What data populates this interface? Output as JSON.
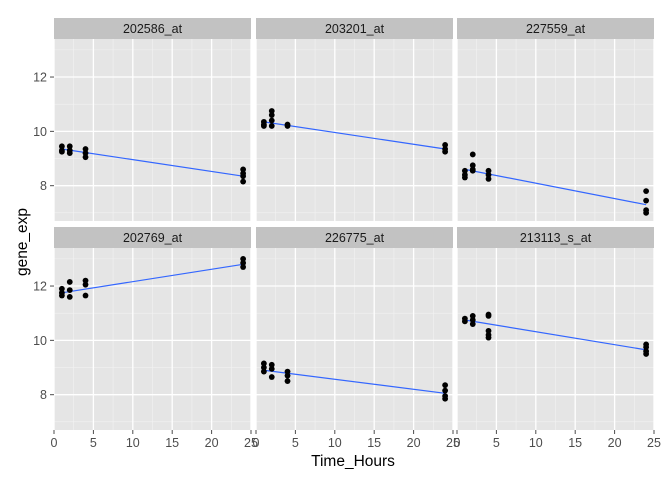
{
  "chart_data": {
    "type": "scatter",
    "xlabel": "Time_Hours",
    "ylabel": "gene_exp",
    "xlim": [
      0,
      25
    ],
    "ylim": [
      6.7,
      13.4
    ],
    "x_ticks": [
      "0",
      "5",
      "10",
      "15",
      "20",
      "25"
    ],
    "y_ticks": [
      "8",
      "10",
      "12"
    ],
    "grid": true,
    "facet_strip_color": "#c2c2c2",
    "panel_background": "#e5e5e5",
    "point_color": "#000000",
    "line_color": "#3366ff",
    "panels": [
      {
        "title": "202586_at",
        "fit": {
          "x": [
            1,
            24
          ],
          "y": [
            9.35,
            8.35
          ]
        },
        "points": [
          {
            "x": 1,
            "y": 9.45
          },
          {
            "x": 1,
            "y": 9.3
          },
          {
            "x": 1,
            "y": 9.25
          },
          {
            "x": 2,
            "y": 9.45
          },
          {
            "x": 2,
            "y": 9.3
          },
          {
            "x": 2,
            "y": 9.2
          },
          {
            "x": 4,
            "y": 9.35
          },
          {
            "x": 4,
            "y": 9.2
          },
          {
            "x": 4,
            "y": 9.05
          },
          {
            "x": 24,
            "y": 8.6
          },
          {
            "x": 24,
            "y": 8.45
          },
          {
            "x": 24,
            "y": 8.35
          },
          {
            "x": 24,
            "y": 8.15
          }
        ]
      },
      {
        "title": "203201_at",
        "fit": {
          "x": [
            1,
            24
          ],
          "y": [
            10.35,
            9.35
          ]
        },
        "points": [
          {
            "x": 1,
            "y": 10.35
          },
          {
            "x": 1,
            "y": 10.25
          },
          {
            "x": 1,
            "y": 10.2
          },
          {
            "x": 2,
            "y": 10.75
          },
          {
            "x": 2,
            "y": 10.6
          },
          {
            "x": 2,
            "y": 10.4
          },
          {
            "x": 2,
            "y": 10.2
          },
          {
            "x": 4,
            "y": 10.25
          },
          {
            "x": 4,
            "y": 10.2
          },
          {
            "x": 24,
            "y": 9.5
          },
          {
            "x": 24,
            "y": 9.35
          },
          {
            "x": 24,
            "y": 9.25
          }
        ]
      },
      {
        "title": "227559_at",
        "fit": {
          "x": [
            1,
            24
          ],
          "y": [
            8.6,
            7.3
          ]
        },
        "points": [
          {
            "x": 1,
            "y": 8.55
          },
          {
            "x": 1,
            "y": 8.4
          },
          {
            "x": 1,
            "y": 8.3
          },
          {
            "x": 2,
            "y": 9.15
          },
          {
            "x": 2,
            "y": 8.75
          },
          {
            "x": 2,
            "y": 8.6
          },
          {
            "x": 2,
            "y": 8.55
          },
          {
            "x": 4,
            "y": 8.55
          },
          {
            "x": 4,
            "y": 8.4
          },
          {
            "x": 4,
            "y": 8.25
          },
          {
            "x": 24,
            "y": 7.8
          },
          {
            "x": 24,
            "y": 7.45
          },
          {
            "x": 24,
            "y": 7.1
          },
          {
            "x": 24,
            "y": 7.0
          }
        ]
      },
      {
        "title": "202769_at",
        "fit": {
          "x": [
            1,
            24
          ],
          "y": [
            11.75,
            12.8
          ]
        },
        "points": [
          {
            "x": 1,
            "y": 11.9
          },
          {
            "x": 1,
            "y": 11.75
          },
          {
            "x": 1,
            "y": 11.65
          },
          {
            "x": 2,
            "y": 12.15
          },
          {
            "x": 2,
            "y": 11.85
          },
          {
            "x": 2,
            "y": 11.6
          },
          {
            "x": 4,
            "y": 12.2
          },
          {
            "x": 4,
            "y": 12.05
          },
          {
            "x": 4,
            "y": 11.65
          },
          {
            "x": 24,
            "y": 13.0
          },
          {
            "x": 24,
            "y": 12.85
          },
          {
            "x": 24,
            "y": 12.7
          }
        ]
      },
      {
        "title": "226775_at",
        "fit": {
          "x": [
            1,
            24
          ],
          "y": [
            8.9,
            8.05
          ]
        },
        "points": [
          {
            "x": 1,
            "y": 9.15
          },
          {
            "x": 1,
            "y": 9.0
          },
          {
            "x": 1,
            "y": 8.85
          },
          {
            "x": 2,
            "y": 9.1
          },
          {
            "x": 2,
            "y": 8.95
          },
          {
            "x": 2,
            "y": 8.65
          },
          {
            "x": 4,
            "y": 8.85
          },
          {
            "x": 4,
            "y": 8.7
          },
          {
            "x": 4,
            "y": 8.5
          },
          {
            "x": 24,
            "y": 8.35
          },
          {
            "x": 24,
            "y": 8.15
          },
          {
            "x": 24,
            "y": 7.95
          },
          {
            "x": 24,
            "y": 7.85
          }
        ]
      },
      {
        "title": "213113_s_at",
        "fit": {
          "x": [
            1,
            24
          ],
          "y": [
            10.75,
            9.65
          ]
        },
        "points": [
          {
            "x": 1,
            "y": 10.8
          },
          {
            "x": 1,
            "y": 10.7
          },
          {
            "x": 2,
            "y": 10.9
          },
          {
            "x": 2,
            "y": 10.75
          },
          {
            "x": 2,
            "y": 10.6
          },
          {
            "x": 4,
            "y": 10.95
          },
          {
            "x": 4,
            "y": 10.9
          },
          {
            "x": 4,
            "y": 10.35
          },
          {
            "x": 4,
            "y": 10.2
          },
          {
            "x": 4,
            "y": 10.1
          },
          {
            "x": 24,
            "y": 9.85
          },
          {
            "x": 24,
            "y": 9.75
          },
          {
            "x": 24,
            "y": 9.6
          },
          {
            "x": 24,
            "y": 9.5
          }
        ]
      }
    ]
  }
}
